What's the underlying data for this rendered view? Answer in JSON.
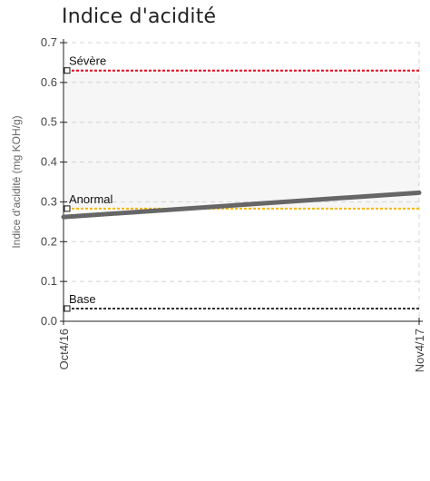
{
  "chart_data": {
    "type": "line",
    "title": "Indice d'acidité",
    "xlabel": "",
    "ylabel": "Indice d'acidité (mg KOH/g)",
    "x": [
      "Oct4/16",
      "Nov4/17"
    ],
    "ylim": [
      0,
      0.7
    ],
    "yticks": [
      "0.0",
      "0.1",
      "0.2",
      "0.3",
      "0.4",
      "0.5",
      "0.6",
      "0.7"
    ],
    "grid": true,
    "series": [
      {
        "values": [
          0.262,
          0.323
        ],
        "color": "#666666"
      }
    ],
    "reference_lines": [
      {
        "label": "Sévère",
        "value": 0.63,
        "color": "#e3001b"
      },
      {
        "label": "Anormal",
        "value": 0.283,
        "color": "#f2b700"
      },
      {
        "label": "Base",
        "value": 0.032,
        "color": "#333333"
      }
    ],
    "shaded_band": {
      "from": 0.283,
      "to": 0.63,
      "color": "#f6f6f6"
    }
  }
}
